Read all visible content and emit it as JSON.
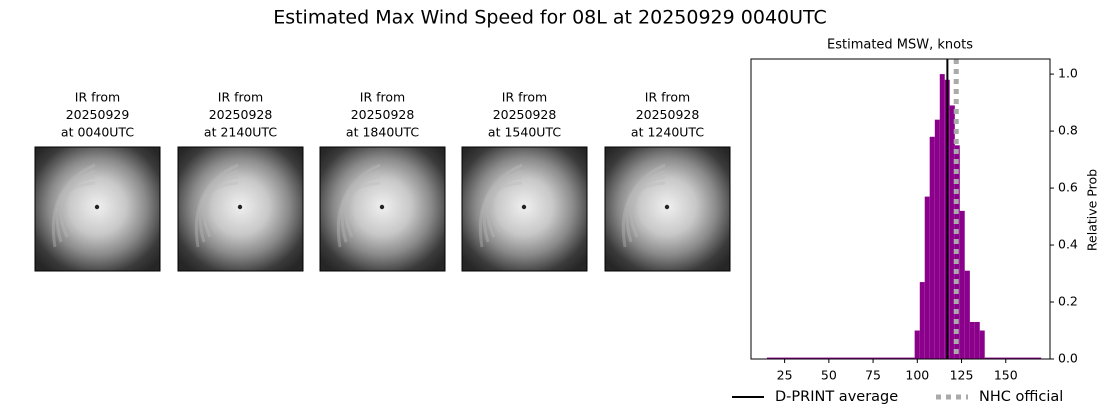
{
  "title": "Estimated Max Wind Speed for 08L at 20250929 0040UTC",
  "panels": [
    {
      "lines": [
        "IR from",
        "20250929",
        "at 0040UTC"
      ]
    },
    {
      "lines": [
        "IR from",
        "20250928",
        "at 2140UTC"
      ]
    },
    {
      "lines": [
        "IR from",
        "20250928",
        "at 1840UTC"
      ]
    },
    {
      "lines": [
        "IR from",
        "20250928",
        "at 1540UTC"
      ]
    },
    {
      "lines": [
        "IR from",
        "20250928",
        "at 1240UTC"
      ]
    }
  ],
  "chart_data": {
    "type": "histogram",
    "title": "Estimated MSW, knots",
    "y_label": "Relative Prob",
    "bins": [
      15,
      98.5,
      101.4,
      104.2,
      107.0,
      109.9,
      112.7,
      115.5,
      118.3,
      121.2,
      124.0,
      126.8,
      129.7,
      132.5,
      135.3,
      138.1,
      170
    ],
    "values": [
      0.005,
      0.1,
      0.27,
      0.57,
      0.78,
      0.84,
      1.0,
      0.98,
      0.89,
      0.75,
      0.52,
      0.31,
      0.13,
      0.13,
      0.1,
      0.005
    ],
    "color": "#8b008b",
    "xlim": [
      6,
      175
    ],
    "ylim": [
      0,
      1.053
    ],
    "xticks": [
      25,
      50,
      75,
      100,
      125,
      150
    ],
    "yticks": [
      {
        "value": 0,
        "label": "0.0"
      },
      0.2,
      0.4,
      0.6,
      0.8,
      {
        "value": 1,
        "label": "1.0"
      }
    ],
    "y_axis_side": "right",
    "lines": [
      {
        "name": "D-PRINT average",
        "value": 117,
        "color": "#000000",
        "style": "solid"
      },
      {
        "name": "NHC official",
        "value": 122,
        "color": "#aaaaaa",
        "style": "dotted"
      }
    ]
  }
}
